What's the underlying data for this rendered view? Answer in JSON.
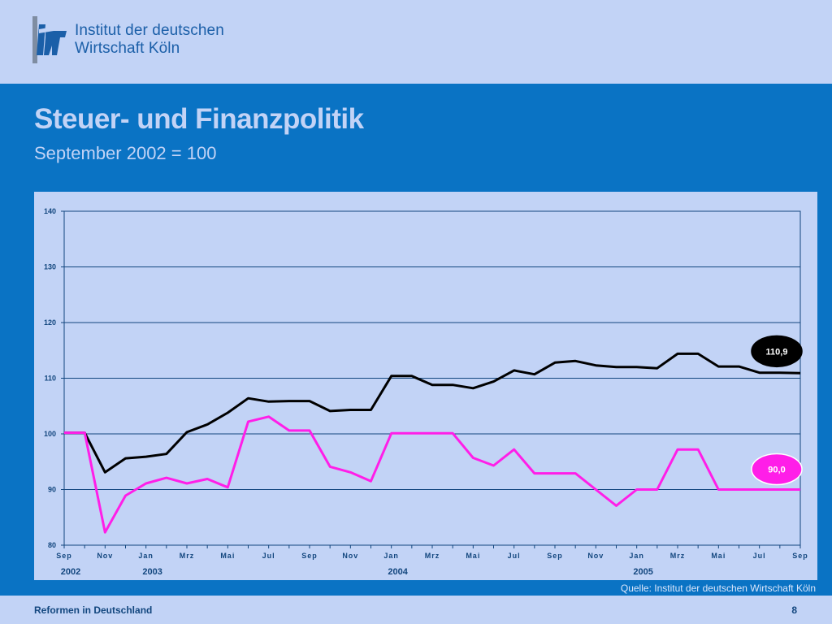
{
  "header": {
    "logo_icon": "iw-logo-icon",
    "logo_line1": "Institut der deutschen",
    "logo_line2": "Wirtschaft Köln"
  },
  "slide": {
    "title": "Steuer- und Finanzpolitik",
    "subtitle": "September 2002 = 100"
  },
  "source": "Quelle: Institut der deutschen Wirtschaft Köln",
  "footer": {
    "left": "Reformen in Deutschland",
    "page_number": "8"
  },
  "colors": {
    "background": "#0a73c4",
    "panel": "#c2d3f6",
    "series_black": "#000000",
    "series_magenta": "#ff1ee8",
    "grid": "#12467e"
  },
  "chart_data": {
    "type": "line",
    "title": "",
    "xlabel": "",
    "ylabel": "",
    "ylim": [
      80,
      140
    ],
    "yticks": [
      80,
      90,
      100,
      110,
      120,
      130,
      140
    ],
    "grid": true,
    "x_tick_labels": [
      "Sep",
      "Nov",
      "Jan",
      "Mrz",
      "Mai",
      "Jul",
      "Sep",
      "Nov",
      "Jan",
      "Mrz",
      "Mai",
      "Jul",
      "Sep",
      "Nov",
      "Jan",
      "Mrz",
      "Mai",
      "Jul",
      "Sep"
    ],
    "year_labels": [
      {
        "label": "2002",
        "month_index": 0
      },
      {
        "label": "2003",
        "month_index": 4
      },
      {
        "label": "2004",
        "month_index": 16
      },
      {
        "label": "2005",
        "month_index": 28
      }
    ],
    "x": [
      "Sep 2002",
      "Okt 2002",
      "Nov 2002",
      "Dez 2002",
      "Jan 2003",
      "Feb 2003",
      "Mrz 2003",
      "Apr 2003",
      "Mai 2003",
      "Jun 2003",
      "Jul 2003",
      "Aug 2003",
      "Sep 2003",
      "Okt 2003",
      "Nov 2003",
      "Dez 2003",
      "Jan 2004",
      "Feb 2004",
      "Mrz 2004",
      "Apr 2004",
      "Mai 2004",
      "Jun 2004",
      "Jul 2004",
      "Aug 2004",
      "Sep 2004",
      "Okt 2004",
      "Nov 2004",
      "Dez 2004",
      "Jan 2005",
      "Feb 2005",
      "Mrz 2005",
      "Apr 2005",
      "Mai 2005",
      "Jun 2005",
      "Jul 2005",
      "Aug 2005",
      "Sep 2005"
    ],
    "series": [
      {
        "color": "#000000",
        "end_label": "110,9",
        "values": [
          100.2,
          100.2,
          93.1,
          95.6,
          95.9,
          96.4,
          100.3,
          101.7,
          103.8,
          106.4,
          105.8,
          105.9,
          105.9,
          104.1,
          104.3,
          104.3,
          110.4,
          110.4,
          108.8,
          108.8,
          108.2,
          109.4,
          111.4,
          110.7,
          112.8,
          113.1,
          112.3,
          112.0,
          112.0,
          111.8,
          114.4,
          114.4,
          112.1,
          112.1,
          111.0,
          111.0,
          110.9
        ]
      },
      {
        "color": "#ff1ee8",
        "end_label": "90,0",
        "values": [
          100.2,
          100.2,
          82.3,
          88.9,
          91.1,
          92.1,
          91.1,
          91.9,
          90.4,
          102.2,
          103.1,
          100.6,
          100.6,
          94.1,
          93.1,
          91.5,
          100.1,
          100.1,
          100.1,
          100.1,
          95.7,
          94.3,
          97.2,
          92.9,
          92.9,
          92.9,
          90.0,
          87.1,
          90.0,
          90.0,
          97.2,
          97.2,
          90.0,
          90.0,
          90.0,
          90.0,
          90.0
        ]
      }
    ]
  }
}
